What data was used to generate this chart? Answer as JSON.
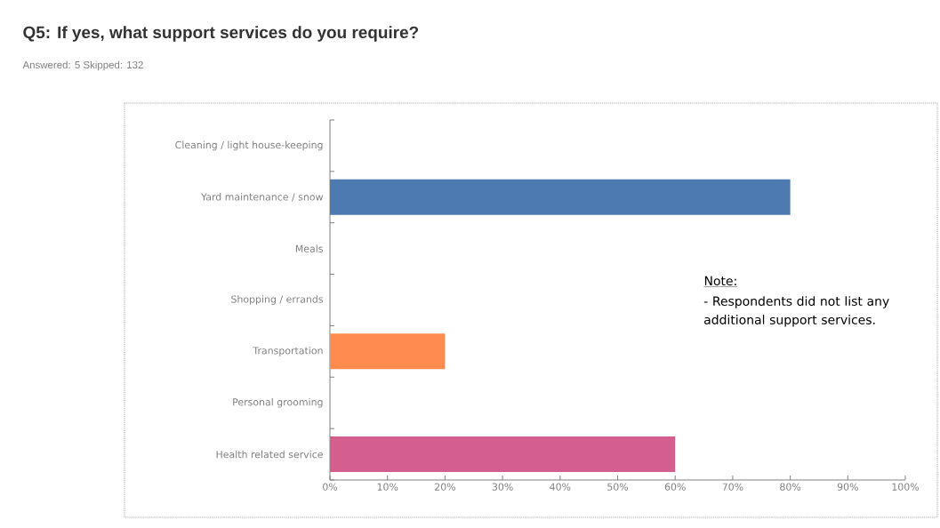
{
  "chart_data": {
    "type": "bar",
    "orientation": "horizontal",
    "title": "Q5: If yes, what support services do you require?",
    "subtitle": "Answered: 5   Skipped: 132",
    "categories": [
      "Cleaning / light house-keeping",
      "Yard maintenance / snow",
      "Meals",
      "Shopping / errands",
      "Transportation",
      "Personal grooming",
      "Health related service"
    ],
    "values": [
      0,
      80,
      0,
      0,
      20,
      0,
      60
    ],
    "colors": [
      "#4e7ab2",
      "#4e7ab2",
      "#ff8b4f",
      "#4e7ab2",
      "#ff8b4f",
      "#4e7ab2",
      "#d45f8e"
    ],
    "xlim": [
      0,
      100
    ],
    "xticks": [
      {
        "value": 0,
        "label": "0%"
      },
      {
        "value": 10,
        "label": "10%"
      },
      {
        "value": 20,
        "label": "20%"
      },
      {
        "value": 30,
        "label": "30%"
      },
      {
        "value": 40,
        "label": "40%"
      },
      {
        "value": 50,
        "label": "50%"
      },
      {
        "value": 60,
        "label": "60%"
      },
      {
        "value": 70,
        "label": "70%"
      },
      {
        "value": 80,
        "label": "80%"
      },
      {
        "value": 90,
        "label": "90%"
      },
      {
        "value": 100,
        "label": "100%"
      }
    ],
    "grid": false,
    "legend": false,
    "annotations": [
      "Note:",
      "- Respondents did not list any additional support services."
    ]
  }
}
